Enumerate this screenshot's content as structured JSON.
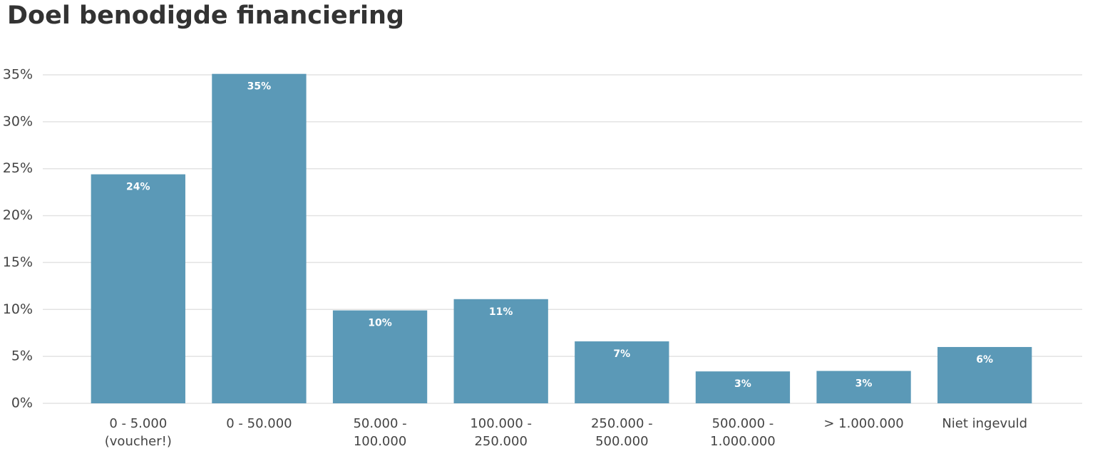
{
  "chart_data": {
    "type": "bar",
    "title": "Doel benodigde financiering",
    "categories": [
      "0 - 5.000 (voucher!)",
      "0 - 50.000",
      "50.000 - 100.000",
      "100.000 - 250.000",
      "250.000 - 500.000",
      "500.000 - 1.000.000",
      "> 1.000.000",
      "Niet ingevuld"
    ],
    "values": [
      24.4,
      35.1,
      9.9,
      11.1,
      6.6,
      3.4,
      3.45,
      6.0
    ],
    "value_labels": [
      "24%",
      "35%",
      "10%",
      "11%",
      "7%",
      "3%",
      "3%",
      "6%"
    ],
    "color": "#5b99b7",
    "ylim": [
      0,
      35
    ],
    "yticks": [
      {
        "value": 0,
        "label": "0%"
      },
      {
        "value": 5,
        "label": "5%"
      },
      {
        "value": 10,
        "label": "10%"
      },
      {
        "value": 15,
        "label": "15%"
      },
      {
        "value": 20,
        "label": "20%"
      },
      {
        "value": 25,
        "label": "25%"
      },
      {
        "value": 30,
        "label": "30%"
      },
      {
        "value": 35,
        "label": "35%"
      }
    ],
    "grid": true
  }
}
